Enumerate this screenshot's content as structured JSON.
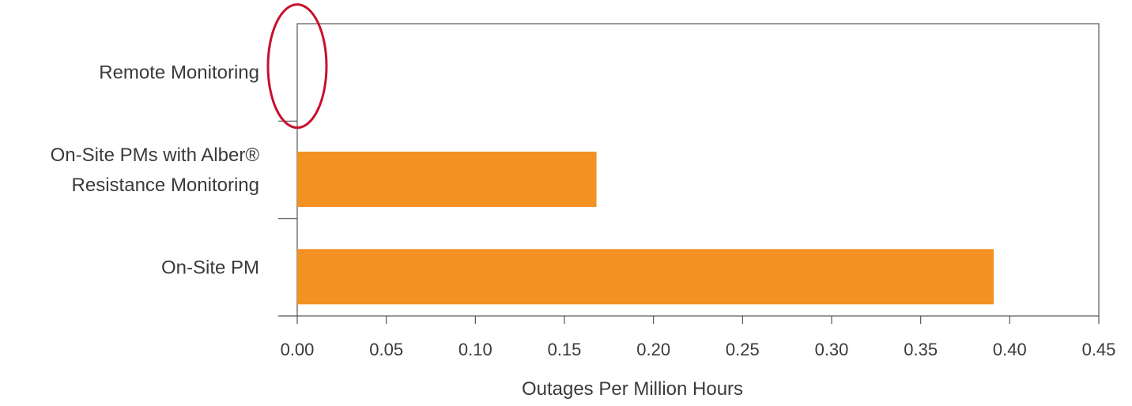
{
  "chart_data": {
    "type": "bar",
    "orientation": "horizontal",
    "categories": [
      [
        "Remote Monitoring"
      ],
      [
        "On-Site PMs with Alber®",
        "Resistance Monitoring"
      ],
      [
        "On-Site PM"
      ]
    ],
    "values": [
      0.0,
      0.168,
      0.391
    ],
    "xlabel": "Outages Per Million Hours",
    "ylabel": "",
    "xlim": [
      0.0,
      0.45
    ],
    "xticks": [
      "0.00",
      "0.05",
      "0.10",
      "0.15",
      "0.20",
      "0.25",
      "0.30",
      "0.35",
      "0.40",
      "0.45"
    ],
    "grid": false,
    "bar_color": "#F39123",
    "highlight": {
      "category_index": 0,
      "shape": "ellipse",
      "color": "#C8102E"
    },
    "frame_color": "#555555"
  }
}
